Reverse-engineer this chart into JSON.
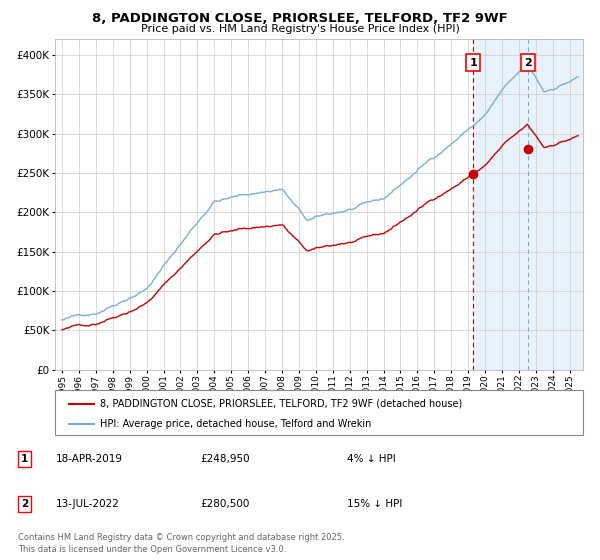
{
  "title_line1": "8, PADDINGTON CLOSE, PRIORSLEE, TELFORD, TF2 9WF",
  "title_line2": "Price paid vs. HM Land Registry's House Price Index (HPI)",
  "legend_red": "8, PADDINGTON CLOSE, PRIORSLEE, TELFORD, TF2 9WF (detached house)",
  "legend_blue": "HPI: Average price, detached house, Telford and Wrekin",
  "annotation1_date": "18-APR-2019",
  "annotation1_price": "£248,950",
  "annotation1_hpi": "4% ↓ HPI",
  "annotation2_date": "13-JUL-2022",
  "annotation2_price": "£280,500",
  "annotation2_hpi": "15% ↓ HPI",
  "footer": "Contains HM Land Registry data © Crown copyright and database right 2025.\nThis data is licensed under the Open Government Licence v3.0.",
  "sale1_year": 2019.3,
  "sale1_value": 248950,
  "sale2_year": 2022.54,
  "sale2_value": 280500,
  "ymin": 0,
  "ymax": 420000,
  "color_red": "#cc0000",
  "color_blue": "#7aaed6",
  "color_shade": "#e8f2fb",
  "background": "#ffffff",
  "grid_color": "#cccccc"
}
